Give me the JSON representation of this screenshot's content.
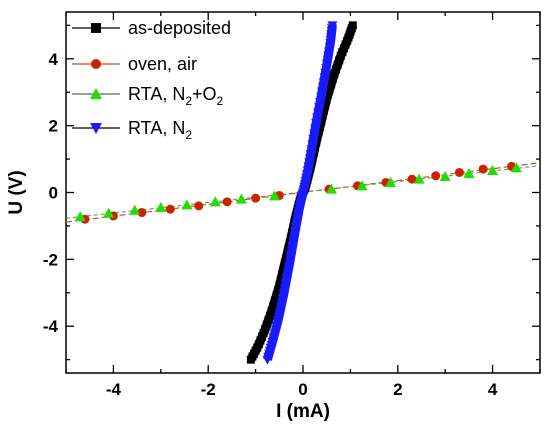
{
  "chart_data": {
    "type": "scatter",
    "xlabel": "I (mA)",
    "ylabel": "U (V)",
    "xlim": [
      -5,
      5
    ],
    "ylim": [
      -5.4,
      5.4
    ],
    "xticks": [
      -4,
      -2,
      0,
      2,
      4
    ],
    "yticks": [
      -4,
      -2,
      0,
      2,
      4
    ],
    "x_tick_labels": [
      "-4",
      "-2",
      "0",
      "2",
      "4"
    ],
    "y_tick_labels": [
      "-4",
      "-2",
      "0",
      "2",
      "4"
    ],
    "grid": false,
    "legend_position": "top-left",
    "series": [
      {
        "name": "as-deposited",
        "legend_text": "as-deposited",
        "color": "#000000",
        "marker": "square",
        "curve": true,
        "points": [
          [
            -1.1,
            -5.0
          ],
          [
            -0.95,
            -4.6
          ],
          [
            -0.8,
            -4.1
          ],
          [
            -0.65,
            -3.5
          ],
          [
            -0.5,
            -2.8
          ],
          [
            -0.38,
            -2.1
          ],
          [
            -0.26,
            -1.4
          ],
          [
            -0.15,
            -0.7
          ],
          [
            -0.06,
            -0.2
          ],
          [
            0.0,
            0.0
          ],
          [
            0.06,
            0.2
          ],
          [
            0.15,
            0.7
          ],
          [
            0.26,
            1.4
          ],
          [
            0.38,
            2.1
          ],
          [
            0.5,
            2.8
          ],
          [
            0.65,
            3.5
          ],
          [
            0.8,
            4.1
          ],
          [
            0.95,
            4.6
          ],
          [
            1.05,
            5.0
          ]
        ]
      },
      {
        "name": "oven, air",
        "legend_text": "oven, air",
        "color": "#cc2200",
        "line_color": "#d04030",
        "marker": "circle",
        "curve": false,
        "points": [
          [
            -4.6,
            -0.8
          ],
          [
            -4.0,
            -0.7
          ],
          [
            -3.4,
            -0.6
          ],
          [
            -2.8,
            -0.5
          ],
          [
            -2.2,
            -0.4
          ],
          [
            -1.6,
            -0.28
          ],
          [
            -1.0,
            -0.17
          ],
          [
            -0.5,
            -0.09
          ],
          [
            0.55,
            0.1
          ],
          [
            1.15,
            0.2
          ],
          [
            1.75,
            0.3
          ],
          [
            2.3,
            0.4
          ],
          [
            2.8,
            0.5
          ],
          [
            3.3,
            0.6
          ],
          [
            3.8,
            0.7
          ],
          [
            4.4,
            0.78
          ]
        ]
      },
      {
        "name": "RTA, N2+O2",
        "legend_text": "RTA, N",
        "legend_sub1": "2",
        "legend_mid": "+O",
        "legend_sub2": "2",
        "color": "#22dd00",
        "line_color": "#5aa05a",
        "marker": "triangle-up",
        "curve": false,
        "points": [
          [
            -4.7,
            -0.72
          ],
          [
            -4.1,
            -0.62
          ],
          [
            -3.55,
            -0.53
          ],
          [
            -3.0,
            -0.45
          ],
          [
            -2.45,
            -0.37
          ],
          [
            -1.85,
            -0.28
          ],
          [
            -1.3,
            -0.2
          ],
          [
            -0.6,
            -0.1
          ],
          [
            0.6,
            0.1
          ],
          [
            1.25,
            0.2
          ],
          [
            1.85,
            0.3
          ],
          [
            2.45,
            0.4
          ],
          [
            3.0,
            0.48
          ],
          [
            3.5,
            0.57
          ],
          [
            4.0,
            0.66
          ],
          [
            4.5,
            0.74
          ]
        ]
      },
      {
        "name": "RTA, N2",
        "legend_text": "RTA, N",
        "legend_sub1": "2",
        "color": "#1a1aff",
        "marker": "triangle-down",
        "curve": true,
        "points": [
          [
            -0.75,
            -5.0
          ],
          [
            -0.65,
            -4.5
          ],
          [
            -0.52,
            -3.8
          ],
          [
            -0.4,
            -3.0
          ],
          [
            -0.28,
            -2.1
          ],
          [
            -0.17,
            -1.2
          ],
          [
            -0.08,
            -0.5
          ],
          [
            0.0,
            0.0
          ],
          [
            0.08,
            0.5
          ],
          [
            0.17,
            1.2
          ],
          [
            0.28,
            2.1
          ],
          [
            0.4,
            3.0
          ],
          [
            0.5,
            3.8
          ],
          [
            0.58,
            4.5
          ],
          [
            0.62,
            5.0
          ]
        ]
      }
    ]
  }
}
